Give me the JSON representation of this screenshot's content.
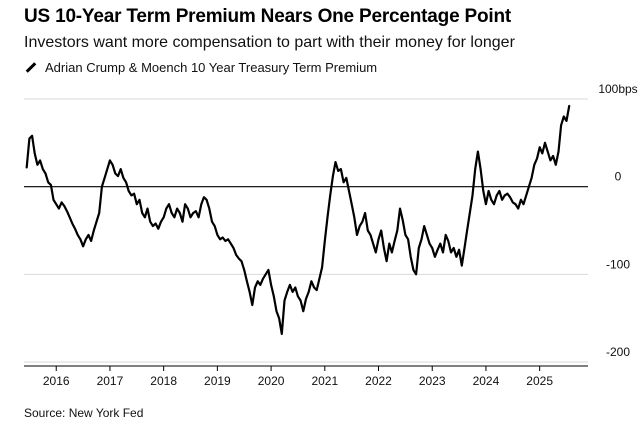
{
  "header": {
    "title": "US 10-Year Term Premium Nears One Percentage Point",
    "subtitle": "Investors want more compensation to part with their money for longer"
  },
  "legend": {
    "series_label": "Adrian Crump & Moench 10 Year Treasury Term Premium",
    "icon": "line-swatch-icon"
  },
  "footer": {
    "source": "Source: New York Fed"
  },
  "colors": {
    "series": "#000000",
    "grid": "#d9d9d9",
    "zero_line": "#000000"
  },
  "chart_data": {
    "type": "line",
    "title": "US 10-Year Term Premium Nears One Percentage Point",
    "subtitle": "Investors want more compensation to part with their money for longer",
    "xlabel": "",
    "ylabel": "",
    "x_ticks": [
      "2016",
      "2017",
      "2018",
      "2019",
      "2020",
      "2021",
      "2022",
      "2023",
      "2024",
      "2025"
    ],
    "y_ticks": [
      {
        "value": 100,
        "label": "100bps"
      },
      {
        "value": 0,
        "label": "0"
      },
      {
        "value": -100,
        "label": "-100"
      },
      {
        "value": -200,
        "label": "-200"
      }
    ],
    "xlim": [
      2015.4,
      2025.9
    ],
    "ylim": [
      -200,
      100
    ],
    "grid": true,
    "legend_position": "top-left",
    "series": [
      {
        "name": "Adrian Crump & Moench 10 Year Treasury Term Premium",
        "points": [
          [
            2015.45,
            22
          ],
          [
            2015.5,
            55
          ],
          [
            2015.55,
            58
          ],
          [
            2015.6,
            38
          ],
          [
            2015.65,
            25
          ],
          [
            2015.7,
            30
          ],
          [
            2015.75,
            20
          ],
          [
            2015.8,
            15
          ],
          [
            2015.85,
            5
          ],
          [
            2015.9,
            2
          ],
          [
            2015.95,
            -15
          ],
          [
            2016.0,
            -20
          ],
          [
            2016.05,
            -25
          ],
          [
            2016.1,
            -18
          ],
          [
            2016.15,
            -22
          ],
          [
            2016.2,
            -28
          ],
          [
            2016.25,
            -35
          ],
          [
            2016.3,
            -42
          ],
          [
            2016.35,
            -48
          ],
          [
            2016.4,
            -55
          ],
          [
            2016.45,
            -60
          ],
          [
            2016.5,
            -68
          ],
          [
            2016.55,
            -60
          ],
          [
            2016.6,
            -55
          ],
          [
            2016.65,
            -62
          ],
          [
            2016.7,
            -50
          ],
          [
            2016.75,
            -40
          ],
          [
            2016.8,
            -30
          ],
          [
            2016.85,
            0
          ],
          [
            2016.9,
            10
          ],
          [
            2016.95,
            20
          ],
          [
            2017.0,
            30
          ],
          [
            2017.05,
            25
          ],
          [
            2017.1,
            15
          ],
          [
            2017.15,
            12
          ],
          [
            2017.2,
            20
          ],
          [
            2017.25,
            10
          ],
          [
            2017.3,
            5
          ],
          [
            2017.35,
            -5
          ],
          [
            2017.4,
            -10
          ],
          [
            2017.45,
            -8
          ],
          [
            2017.5,
            -20
          ],
          [
            2017.55,
            -15
          ],
          [
            2017.6,
            -30
          ],
          [
            2017.65,
            -35
          ],
          [
            2017.7,
            -25
          ],
          [
            2017.75,
            -40
          ],
          [
            2017.8,
            -45
          ],
          [
            2017.85,
            -42
          ],
          [
            2017.9,
            -48
          ],
          [
            2017.95,
            -40
          ],
          [
            2018.0,
            -35
          ],
          [
            2018.05,
            -25
          ],
          [
            2018.1,
            -20
          ],
          [
            2018.15,
            -30
          ],
          [
            2018.2,
            -35
          ],
          [
            2018.25,
            -25
          ],
          [
            2018.3,
            -30
          ],
          [
            2018.35,
            -40
          ],
          [
            2018.4,
            -20
          ],
          [
            2018.45,
            -25
          ],
          [
            2018.5,
            -35
          ],
          [
            2018.55,
            -30
          ],
          [
            2018.6,
            -28
          ],
          [
            2018.65,
            -35
          ],
          [
            2018.7,
            -20
          ],
          [
            2018.75,
            -12
          ],
          [
            2018.8,
            -15
          ],
          [
            2018.85,
            -25
          ],
          [
            2018.9,
            -40
          ],
          [
            2018.95,
            -45
          ],
          [
            2019.0,
            -55
          ],
          [
            2019.05,
            -60
          ],
          [
            2019.1,
            -58
          ],
          [
            2019.15,
            -62
          ],
          [
            2019.2,
            -60
          ],
          [
            2019.25,
            -65
          ],
          [
            2019.3,
            -70
          ],
          [
            2019.35,
            -78
          ],
          [
            2019.4,
            -82
          ],
          [
            2019.45,
            -85
          ],
          [
            2019.5,
            -95
          ],
          [
            2019.55,
            -108
          ],
          [
            2019.6,
            -120
          ],
          [
            2019.65,
            -135
          ],
          [
            2019.7,
            -115
          ],
          [
            2019.75,
            -108
          ],
          [
            2019.8,
            -112
          ],
          [
            2019.85,
            -105
          ],
          [
            2019.9,
            -100
          ],
          [
            2019.95,
            -95
          ],
          [
            2020.0,
            -112
          ],
          [
            2020.05,
            -125
          ],
          [
            2020.1,
            -142
          ],
          [
            2020.15,
            -150
          ],
          [
            2020.2,
            -168
          ],
          [
            2020.25,
            -130
          ],
          [
            2020.3,
            -120
          ],
          [
            2020.35,
            -112
          ],
          [
            2020.4,
            -120
          ],
          [
            2020.45,
            -115
          ],
          [
            2020.5,
            -125
          ],
          [
            2020.55,
            -130
          ],
          [
            2020.6,
            -142
          ],
          [
            2020.65,
            -128
          ],
          [
            2020.7,
            -120
          ],
          [
            2020.75,
            -108
          ],
          [
            2020.8,
            -115
          ],
          [
            2020.85,
            -118
          ],
          [
            2020.9,
            -105
          ],
          [
            2020.95,
            -92
          ],
          [
            2021.0,
            -62
          ],
          [
            2021.05,
            -35
          ],
          [
            2021.1,
            -10
          ],
          [
            2021.15,
            12
          ],
          [
            2021.2,
            28
          ],
          [
            2021.25,
            18
          ],
          [
            2021.3,
            20
          ],
          [
            2021.35,
            5
          ],
          [
            2021.4,
            10
          ],
          [
            2021.45,
            -5
          ],
          [
            2021.5,
            -20
          ],
          [
            2021.55,
            -35
          ],
          [
            2021.6,
            -55
          ],
          [
            2021.65,
            -45
          ],
          [
            2021.7,
            -40
          ],
          [
            2021.75,
            -30
          ],
          [
            2021.8,
            -50
          ],
          [
            2021.85,
            -55
          ],
          [
            2021.9,
            -65
          ],
          [
            2021.95,
            -75
          ],
          [
            2022.0,
            -60
          ],
          [
            2022.05,
            -50
          ],
          [
            2022.1,
            -70
          ],
          [
            2022.15,
            -85
          ],
          [
            2022.2,
            -65
          ],
          [
            2022.25,
            -75
          ],
          [
            2022.3,
            -62
          ],
          [
            2022.35,
            -50
          ],
          [
            2022.4,
            -25
          ],
          [
            2022.45,
            -38
          ],
          [
            2022.5,
            -55
          ],
          [
            2022.55,
            -60
          ],
          [
            2022.6,
            -80
          ],
          [
            2022.65,
            -95
          ],
          [
            2022.7,
            -100
          ],
          [
            2022.75,
            -70
          ],
          [
            2022.8,
            -60
          ],
          [
            2022.85,
            -45
          ],
          [
            2022.9,
            -55
          ],
          [
            2022.95,
            -65
          ],
          [
            2023.0,
            -70
          ],
          [
            2023.05,
            -80
          ],
          [
            2023.1,
            -72
          ],
          [
            2023.15,
            -65
          ],
          [
            2023.2,
            -75
          ],
          [
            2023.25,
            -55
          ],
          [
            2023.3,
            -62
          ],
          [
            2023.35,
            -75
          ],
          [
            2023.4,
            -70
          ],
          [
            2023.45,
            -80
          ],
          [
            2023.5,
            -72
          ],
          [
            2023.55,
            -90
          ],
          [
            2023.6,
            -70
          ],
          [
            2023.65,
            -50
          ],
          [
            2023.7,
            -30
          ],
          [
            2023.75,
            -10
          ],
          [
            2023.8,
            20
          ],
          [
            2023.85,
            40
          ],
          [
            2023.9,
            20
          ],
          [
            2023.95,
            -5
          ],
          [
            2024.0,
            -20
          ],
          [
            2024.05,
            -5
          ],
          [
            2024.1,
            -15
          ],
          [
            2024.15,
            -20
          ],
          [
            2024.2,
            -10
          ],
          [
            2024.25,
            -5
          ],
          [
            2024.3,
            -15
          ],
          [
            2024.35,
            -10
          ],
          [
            2024.4,
            -8
          ],
          [
            2024.45,
            -12
          ],
          [
            2024.5,
            -18
          ],
          [
            2024.55,
            -20
          ],
          [
            2024.6,
            -25
          ],
          [
            2024.65,
            -15
          ],
          [
            2024.7,
            -20
          ],
          [
            2024.75,
            -10
          ],
          [
            2024.8,
            0
          ],
          [
            2024.85,
            10
          ],
          [
            2024.9,
            25
          ],
          [
            2024.95,
            32
          ],
          [
            2025.0,
            45
          ],
          [
            2025.05,
            38
          ],
          [
            2025.1,
            50
          ],
          [
            2025.15,
            40
          ],
          [
            2025.2,
            30
          ],
          [
            2025.25,
            35
          ],
          [
            2025.3,
            25
          ],
          [
            2025.35,
            40
          ],
          [
            2025.4,
            70
          ],
          [
            2025.45,
            80
          ],
          [
            2025.5,
            75
          ],
          [
            2025.55,
            92
          ]
        ]
      }
    ]
  }
}
